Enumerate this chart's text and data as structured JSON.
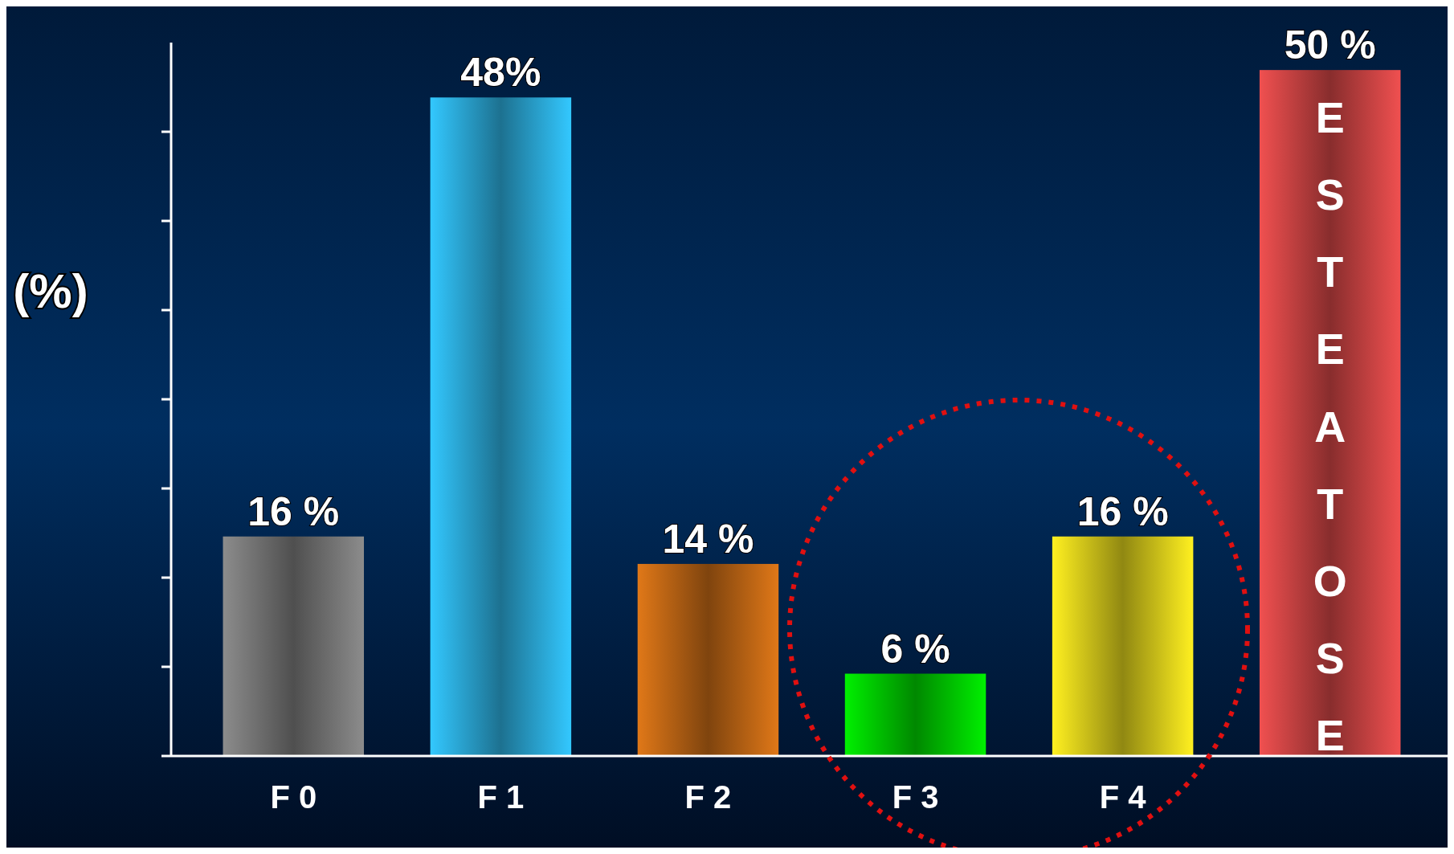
{
  "chart_data": {
    "type": "bar",
    "ylabel": "(%)",
    "categories": [
      "F 0",
      "F 1",
      "F 2",
      "F 3",
      "F 4",
      "ESTEATOSE"
    ],
    "values": [
      16,
      48,
      14,
      6,
      16,
      50
    ],
    "colors": [
      "#8c8c8c",
      "#33c8ff",
      "#e07818",
      "#00f000",
      "#fff020",
      "#f05050"
    ],
    "value_labels": [
      "16 %",
      "48%",
      "14 %",
      "6 %",
      "16 %",
      "50 %"
    ],
    "ylim": [
      0,
      52
    ],
    "yticks": [
      {
        "value": 0,
        "label": null
      },
      {
        "value": 6.5,
        "label": null
      },
      {
        "value": 13,
        "label": null
      },
      {
        "value": 19.5,
        "label": null
      },
      {
        "value": 26,
        "label": null
      },
      {
        "value": 32.5,
        "label": null
      },
      {
        "value": 39,
        "label": null
      },
      {
        "value": 45.5,
        "label": null
      }
    ],
    "grid": false,
    "legend": false
  }
}
